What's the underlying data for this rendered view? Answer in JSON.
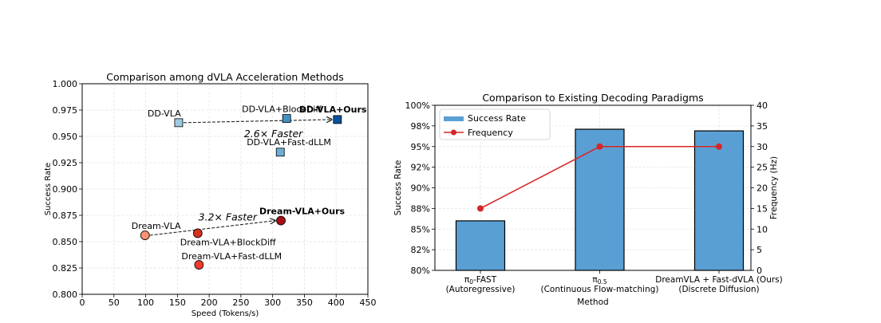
{
  "chart_data": [
    {
      "type": "scatter",
      "title": "Comparison among dVLA Acceleration Methods",
      "xlabel": "Speed (Tokens/s)",
      "ylabel": "Success Rate",
      "xlim": [
        0,
        450
      ],
      "ylim": [
        0.8,
        1.0
      ],
      "xticks": [
        0,
        50,
        100,
        150,
        200,
        250,
        300,
        350,
        400,
        450
      ],
      "yticks": [
        0.8,
        0.825,
        0.85,
        0.875,
        0.9,
        0.925,
        0.95,
        0.975,
        1.0
      ],
      "grid": true,
      "points": [
        {
          "label": "DD-VLA",
          "x": 152,
          "y": 0.963,
          "marker": "square",
          "color": "#9ecae1",
          "label_color": "#000000",
          "bold": false
        },
        {
          "label": "DD-VLA+BlockDiff",
          "x": 322,
          "y": 0.967,
          "marker": "square",
          "color": "#4292c6",
          "label_color": "#000000",
          "bold": false
        },
        {
          "label": "DD-VLA+Fast-dLLM",
          "x": 312,
          "y": 0.935,
          "marker": "square",
          "color": "#6baed6",
          "label_color": "#000000",
          "bold": false
        },
        {
          "label": "DD-VLA+Ours",
          "x": 402,
          "y": 0.966,
          "marker": "square",
          "color": "#08519c",
          "label_color": "#08519c",
          "bold": true
        },
        {
          "label": "Dream-VLA",
          "x": 99,
          "y": 0.856,
          "marker": "circle",
          "color": "#fc9272",
          "label_color": "#000000",
          "bold": false
        },
        {
          "label": "Dream-VLA+BlockDiff",
          "x": 182,
          "y": 0.858,
          "marker": "circle",
          "color": "#d7301f",
          "label_color": "#000000",
          "bold": false
        },
        {
          "label": "Dream-VLA+Fast-dLLM",
          "x": 184,
          "y": 0.828,
          "marker": "circle",
          "color": "#ef3b2c",
          "label_color": "#000000",
          "bold": false
        },
        {
          "label": "Dream-VLA+Ours",
          "x": 313,
          "y": 0.87,
          "marker": "circle",
          "color": "#a50f15",
          "label_color": "#a50f15",
          "bold": true
        }
      ],
      "annotations": [
        {
          "text": "2.6× Faster",
          "from": [
            152,
            0.963
          ],
          "to": [
            402,
            0.966
          ],
          "color": "#2166ac"
        },
        {
          "text": "3.2× Faster",
          "from": [
            99,
            0.856
          ],
          "to": [
            313,
            0.87
          ],
          "color": "#b2182b"
        }
      ]
    },
    {
      "type": "bar",
      "title": "Comparison to Existing Decoding Paradigms",
      "xlabel": "Method",
      "ylabel": "Success Rate",
      "y2label": "Frequency (Hz)",
      "categories": [
        {
          "main": "π0-FAST",
          "sub": "(Autoregressive)"
        },
        {
          "main": "π0.5",
          "sub": "(Continuous Flow-matching)"
        },
        {
          "main": "DreamVLA + Fast-dVLA (Ours)",
          "sub": "(Discrete Diffusion)"
        }
      ],
      "series": [
        {
          "name": "Success Rate",
          "axis": "left",
          "kind": "bar",
          "color": "#5a9fd4",
          "values": [
            86.0,
            97.1,
            96.9
          ]
        },
        {
          "name": "Frequency",
          "axis": "right",
          "kind": "line",
          "color": "#d62728",
          "values": [
            15,
            30,
            30
          ]
        }
      ],
      "ylim": [
        80,
        100
      ],
      "yticks": [
        80,
        82.5,
        85,
        87.5,
        90,
        92.5,
        95,
        97.5,
        100
      ],
      "ytick_labels": [
        "80%",
        "82%",
        "85%",
        "88%",
        "90%",
        "92%",
        "95%",
        "98%",
        "100%"
      ],
      "y2lim": [
        0,
        40
      ],
      "y2ticks": [
        0,
        5,
        10,
        15,
        20,
        25,
        30,
        35,
        40
      ],
      "grid": true,
      "legend_position": "top-left"
    }
  ]
}
